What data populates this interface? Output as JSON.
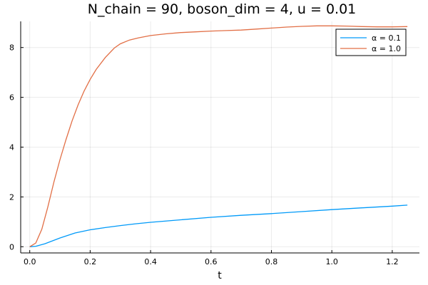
{
  "chart_data": {
    "type": "line",
    "title": "N_chain = 90, boson_dim = 4, u = 0.01",
    "xlabel": "t",
    "ylabel": "",
    "xlim": [
      -0.03,
      1.29
    ],
    "ylim": [
      -0.25,
      9.05
    ],
    "xticks": [
      0.0,
      0.2,
      0.4,
      0.6,
      0.8,
      1.0,
      1.2
    ],
    "xtick_labels": [
      "0.0",
      "0.2",
      "0.4",
      "0.6",
      "0.8",
      "1.0",
      "1.2"
    ],
    "yticks": [
      0,
      2,
      4,
      6,
      8
    ],
    "ytick_labels": [
      "0",
      "2",
      "4",
      "6",
      "8"
    ],
    "grid": true,
    "legend_position": "top-right",
    "series": [
      {
        "name": "α = 0.1",
        "color": "#009af9",
        "x": [
          0.0,
          0.02,
          0.05,
          0.1,
          0.15,
          0.2,
          0.25,
          0.3,
          0.35,
          0.4,
          0.5,
          0.6,
          0.7,
          0.8,
          0.9,
          1.0,
          1.1,
          1.2,
          1.25
        ],
        "y": [
          0.0,
          0.02,
          0.12,
          0.35,
          0.55,
          0.68,
          0.77,
          0.85,
          0.92,
          0.98,
          1.08,
          1.18,
          1.26,
          1.33,
          1.41,
          1.49,
          1.56,
          1.63,
          1.67
        ]
      },
      {
        "name": "α = 1.0",
        "color": "#e26f46",
        "x": [
          0.0,
          0.02,
          0.04,
          0.06,
          0.08,
          0.1,
          0.12,
          0.14,
          0.16,
          0.18,
          0.2,
          0.22,
          0.25,
          0.28,
          0.3,
          0.33,
          0.36,
          0.4,
          0.45,
          0.5,
          0.55,
          0.6,
          0.65,
          0.7,
          0.75,
          0.8,
          0.85,
          0.9,
          0.95,
          1.0,
          1.05,
          1.1,
          1.15,
          1.2,
          1.25
        ],
        "y": [
          0.0,
          0.15,
          0.7,
          1.6,
          2.6,
          3.5,
          4.3,
          5.05,
          5.7,
          6.25,
          6.72,
          7.12,
          7.6,
          7.98,
          8.15,
          8.3,
          8.39,
          8.48,
          8.55,
          8.6,
          8.63,
          8.66,
          8.68,
          8.7,
          8.74,
          8.78,
          8.82,
          8.85,
          8.87,
          8.87,
          8.86,
          8.84,
          8.83,
          8.83,
          8.84
        ]
      }
    ]
  }
}
